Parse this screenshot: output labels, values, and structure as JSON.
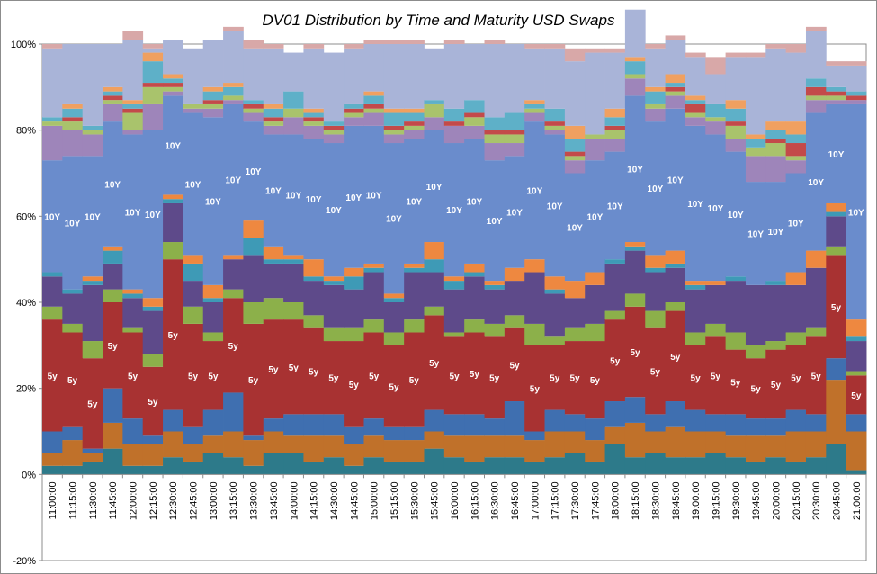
{
  "chart_data": {
    "type": "bar",
    "stacked": true,
    "title": "DV01 Distribution by Time and Maturity USD Swaps",
    "ylim": [
      -20,
      100
    ],
    "yticks": [
      "-20%",
      "0%",
      "20%",
      "40%",
      "60%",
      "80%",
      "100%"
    ],
    "categories": [
      "11:00:00",
      "11:15:00",
      "11:30:00",
      "11:45:00",
      "12:00:00",
      "12:15:00",
      "12:30:00",
      "12:45:00",
      "13:00:00",
      "13:15:00",
      "13:30:00",
      "13:45:00",
      "14:00:00",
      "14:15:00",
      "14:30:00",
      "14:45:00",
      "15:00:00",
      "15:15:00",
      "15:30:00",
      "15:45:00",
      "16:00:00",
      "16:15:00",
      "16:30:00",
      "16:45:00",
      "17:00:00",
      "17:15:00",
      "17:30:00",
      "17:45:00",
      "18:00:00",
      "18:15:00",
      "18:30:00",
      "18:45:00",
      "19:00:00",
      "19:15:00",
      "19:30:00",
      "19:45:00",
      "20:00:00",
      "20:15:00",
      "20:30:00",
      "20:45:00",
      "21:00:00"
    ],
    "series": [
      {
        "color": "#2d7a8a",
        "values": [
          2,
          2,
          3,
          6,
          2,
          2,
          4,
          3,
          5,
          4,
          2,
          5,
          5,
          3,
          4,
          2,
          4,
          3,
          3,
          6,
          4,
          3,
          4,
          4,
          3,
          4,
          5,
          3,
          7,
          4,
          5,
          4,
          4,
          5,
          4,
          3,
          4,
          3,
          4,
          7,
          1
        ]
      },
      {
        "color": "#c0712a",
        "values": [
          3,
          6,
          2,
          6,
          5,
          5,
          6,
          4,
          4,
          6,
          6,
          5,
          4,
          6,
          5,
          5,
          5,
          5,
          5,
          4,
          5,
          6,
          5,
          5,
          5,
          6,
          5,
          5,
          4,
          8,
          5,
          7,
          6,
          5,
          5,
          6,
          5,
          7,
          6,
          15,
          9
        ]
      },
      {
        "color": "#3f6fb0",
        "values": [
          5,
          3,
          1,
          8,
          6,
          2,
          5,
          4,
          6,
          9,
          1,
          3,
          5,
          5,
          5,
          4,
          4,
          3,
          3,
          5,
          5,
          5,
          4,
          8,
          2,
          5,
          4,
          5,
          6,
          6,
          4,
          6,
          5,
          4,
          5,
          4,
          4,
          5,
          4,
          5,
          4
        ]
      },
      {
        "color": "#a83232",
        "values": [
          26,
          22,
          21,
          20,
          20,
          16,
          35,
          24,
          16,
          22,
          26,
          23,
          22,
          20,
          17,
          20,
          20,
          19,
          22,
          22,
          18,
          19,
          19,
          17,
          20,
          15,
          17,
          18,
          19,
          21,
          20,
          21,
          15,
          18,
          15,
          14,
          16,
          15,
          18,
          24,
          9
        ]
      },
      {
        "color": "#8cb04a",
        "values": [
          3,
          2,
          4,
          3,
          1,
          3,
          4,
          4,
          2,
          2,
          5,
          5,
          4,
          3,
          3,
          3,
          3,
          3,
          3,
          2,
          1,
          3,
          3,
          3,
          5,
          2,
          3,
          4,
          2,
          3,
          4,
          2,
          3,
          3,
          4,
          3,
          2,
          3,
          2,
          2,
          1
        ]
      },
      {
        "color": "#5e4a8a",
        "values": [
          7,
          7,
          13,
          6,
          7,
          10,
          9,
          6,
          7,
          7,
          11,
          8,
          9,
          8,
          10,
          9,
          11,
          7,
          11,
          8,
          10,
          10,
          8,
          8,
          12,
          10,
          7,
          9,
          11,
          10,
          9,
          8,
          10,
          9,
          12,
          14,
          13,
          11,
          14,
          7,
          7
        ]
      },
      {
        "color": "#3e9ab6",
        "values": [
          1,
          1,
          1,
          3,
          1,
          1,
          1,
          4,
          1,
          0,
          4,
          1,
          1,
          1,
          1,
          3,
          1,
          1,
          1,
          3,
          2,
          1,
          1,
          0,
          0,
          1,
          0,
          0,
          1,
          1,
          1,
          1,
          1,
          0,
          1,
          0,
          1,
          0,
          0,
          1,
          1
        ]
      },
      {
        "color": "#ee8840",
        "values": [
          0,
          0,
          1,
          1,
          1,
          2,
          1,
          2,
          3,
          1,
          4,
          3,
          1,
          4,
          1,
          2,
          1,
          1,
          1,
          4,
          1,
          2,
          1,
          3,
          3,
          3,
          4,
          3,
          0,
          1,
          3,
          3,
          1,
          1,
          0,
          0,
          0,
          3,
          4,
          2,
          4
        ]
      },
      {
        "color": "#6a8ccc",
        "values": [
          26,
          31,
          28,
          29,
          36,
          39,
          23,
          33,
          39,
          35,
          23,
          26,
          28,
          28,
          31,
          33,
          32,
          35,
          29,
          26,
          31,
          29,
          28,
          26,
          32,
          33,
          25,
          26,
          25,
          34,
          31,
          33,
          36,
          34,
          29,
          24,
          23,
          23,
          32,
          23,
          50
        ]
      },
      {
        "color": "#9e85ba",
        "values": [
          8,
          6,
          5,
          4,
          1,
          6,
          1,
          1,
          2,
          1,
          2,
          2,
          4,
          3,
          2,
          2,
          3,
          2,
          2,
          3,
          4,
          3,
          4,
          3,
          2,
          1,
          3,
          5,
          3,
          4,
          3,
          3,
          2,
          3,
          3,
          6,
          6,
          3,
          3,
          1,
          1
        ]
      },
      {
        "color": "#a9c36c",
        "values": [
          1,
          2,
          1,
          1,
          4,
          4,
          1,
          1,
          1,
          1,
          1,
          1,
          2,
          1,
          1,
          1,
          1,
          1,
          1,
          3,
          0,
          2,
          2,
          2,
          1,
          1,
          1,
          1,
          2,
          1,
          1,
          1,
          1,
          1,
          3,
          2,
          3,
          1,
          1,
          1,
          0
        ]
      },
      {
        "color": "#c34a4a",
        "values": [
          0,
          1,
          0,
          1,
          1,
          1,
          1,
          0,
          1,
          0,
          1,
          1,
          0,
          1,
          1,
          1,
          1,
          1,
          1,
          0,
          1,
          1,
          1,
          1,
          0,
          1,
          1,
          0,
          1,
          0,
          0,
          1,
          2,
          0,
          1,
          0,
          1,
          3,
          2,
          1,
          1
        ]
      },
      {
        "color": "#5eb0c8",
        "values": [
          1,
          2,
          1,
          1,
          1,
          5,
          1,
          0,
          2,
          2,
          1,
          2,
          4,
          1,
          1,
          1,
          2,
          3,
          2,
          1,
          3,
          3,
          3,
          4,
          1,
          3,
          3,
          0,
          2,
          3,
          3,
          1,
          1,
          3,
          3,
          2,
          2,
          2,
          2,
          1,
          1
        ]
      },
      {
        "color": "#f0a060",
        "values": [
          0,
          1,
          0,
          1,
          1,
          2,
          1,
          0,
          1,
          1,
          0,
          1,
          0,
          1,
          0,
          0,
          1,
          1,
          1,
          0,
          0,
          0,
          0,
          0,
          1,
          0,
          3,
          0,
          2,
          1,
          1,
          2,
          1,
          0,
          2,
          1,
          2,
          3,
          0,
          0,
          0
        ]
      },
      {
        "color": "#a9b4d8",
        "values": [
          16,
          14,
          19,
          10,
          14,
          1,
          8,
          13,
          11,
          12,
          12,
          13,
          9,
          14,
          16,
          13,
          11,
          15,
          15,
          12,
          15,
          13,
          17,
          16,
          12,
          14,
          15,
          19,
          13,
          11,
          9,
          8,
          9,
          7,
          10,
          18,
          17,
          16,
          11,
          5,
          6
        ]
      },
      {
        "color": "#d8a8a8",
        "values": [
          1,
          0,
          0,
          0,
          2,
          1,
          0,
          0,
          0,
          1,
          2,
          1,
          0,
          1,
          0,
          1,
          1,
          1,
          1,
          0,
          1,
          0,
          1,
          0,
          1,
          1,
          3,
          1,
          1,
          0,
          1,
          1,
          1,
          4,
          1,
          1,
          1,
          2,
          1,
          1,
          1
        ]
      },
      {
        "color": "#2a2a2a",
        "values": [
          0,
          0,
          0,
          0,
          0,
          0,
          0,
          0,
          0,
          0,
          0,
          0,
          0,
          0,
          0,
          0,
          0,
          0,
          0,
          0,
          0,
          0,
          0,
          0,
          0,
          0,
          0,
          0,
          0,
          0,
          0,
          0,
          0,
          0,
          0,
          0,
          0,
          0,
          0,
          0,
          0
        ]
      }
    ],
    "labels_5y": "5y",
    "labels_10y": "10Y",
    "label_series_5y": 3,
    "label_series_10y": 8
  }
}
